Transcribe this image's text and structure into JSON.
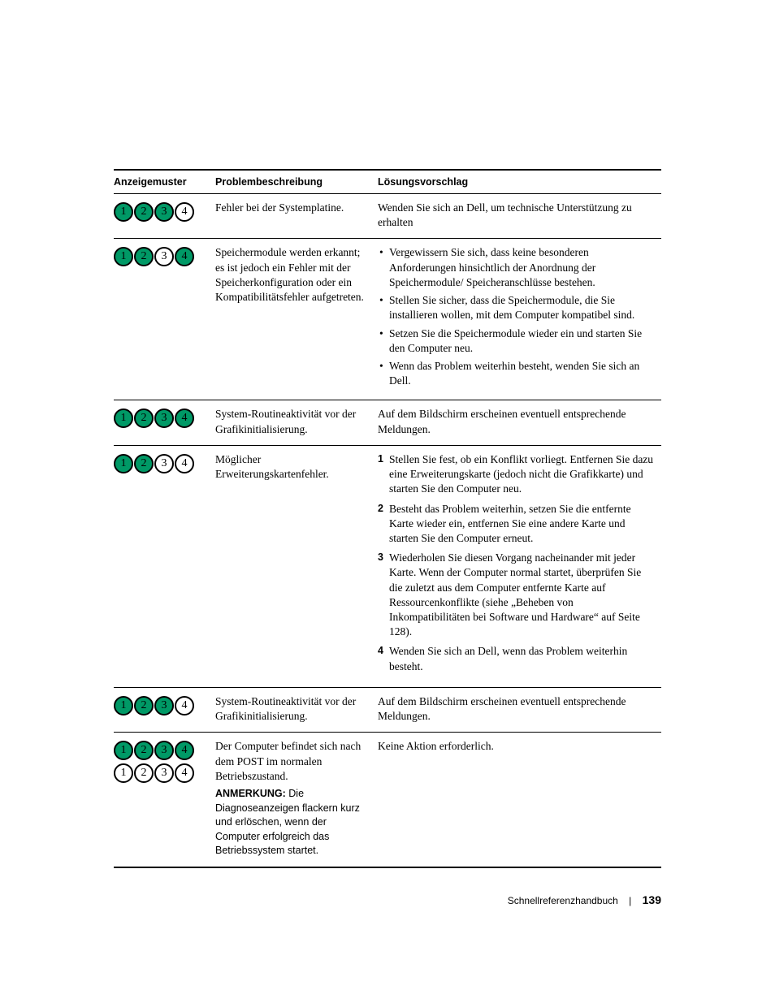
{
  "led_colors": {
    "on": "#009966",
    "off": "#ffffff",
    "border": "#000000"
  },
  "headers": {
    "pattern": "Anzeigemuster",
    "problem": "Problembeschreibung",
    "solution": "Lösungsvorschlag"
  },
  "rows": [
    {
      "leds": [
        [
          true,
          true,
          true,
          false
        ]
      ],
      "problem": "Fehler bei der Systemplatine.",
      "solution_type": "text",
      "solution_text": "Wenden Sie sich an Dell, um technische Unterstützung zu erhalten"
    },
    {
      "leds": [
        [
          true,
          true,
          false,
          true
        ]
      ],
      "problem": "Speichermodule werden erkannt; es ist jedoch ein Fehler mit der Speicherkonfiguration oder ein Kompatibilitätsfehler aufgetreten.",
      "solution_type": "ul",
      "solution_items": [
        "Vergewissern Sie sich, dass keine besonderen Anforderungen hinsichtlich der Anordnung der Speichermodule/ Speicheranschlüsse bestehen.",
        "Stellen Sie sicher, dass die Speichermodule, die Sie installieren wollen, mit dem Computer kompatibel sind.",
        "Setzen Sie die Speichermodule wieder ein und starten Sie den Computer neu.",
        "Wenn das Problem weiterhin besteht, wenden Sie sich an Dell."
      ]
    },
    {
      "leds": [
        [
          true,
          true,
          true,
          true
        ]
      ],
      "problem": "System-Routineaktivität vor der Grafikinitialisierung.",
      "solution_type": "text",
      "solution_text": "Auf dem Bildschirm erscheinen eventuell entsprechende Meldungen."
    },
    {
      "leds": [
        [
          true,
          true,
          false,
          false
        ]
      ],
      "problem": "Möglicher Erweiterungskartenfehler.",
      "solution_type": "ol",
      "solution_items": [
        "Stellen Sie fest, ob ein Konflikt vorliegt. Entfernen Sie dazu eine Erweiterungskarte (jedoch nicht die Grafikkarte) und starten Sie den Computer neu.",
        "Besteht das Problem weiterhin, setzen Sie die entfernte Karte wieder ein, entfernen Sie eine andere Karte und starten Sie den Computer erneut.",
        "Wiederholen Sie diesen Vorgang nacheinander mit jeder Karte. Wenn der Computer normal startet, überprüfen Sie die zuletzt aus dem Computer entfernte Karte auf Ressourcenkonflikte (siehe „Beheben von Inkompatibilitäten bei Software und Hardware“ auf Seite 128).",
        "Wenden Sie sich an Dell, wenn das Problem weiterhin besteht."
      ]
    },
    {
      "leds": [
        [
          true,
          true,
          true,
          false
        ]
      ],
      "problem": "System-Routineaktivität vor der Grafikinitialisierung.",
      "solution_type": "text",
      "solution_text": "Auf dem Bildschirm erscheinen eventuell entsprechende Meldungen."
    },
    {
      "leds": [
        [
          true,
          true,
          true,
          true
        ],
        [
          false,
          false,
          false,
          false
        ]
      ],
      "problem": "Der Computer befindet sich nach dem POST im normalen Betriebszustand.",
      "note_label": "ANMERKUNG:",
      "note_text": "Die Diagnoseanzeigen flackern kurz und erlöschen, wenn der Computer erfolgreich das Betriebssystem startet.",
      "solution_type": "text",
      "solution_text": "Keine Aktion erforderlich."
    }
  ],
  "footer": {
    "title": "Schnellreferenzhandbuch",
    "page": "139"
  }
}
